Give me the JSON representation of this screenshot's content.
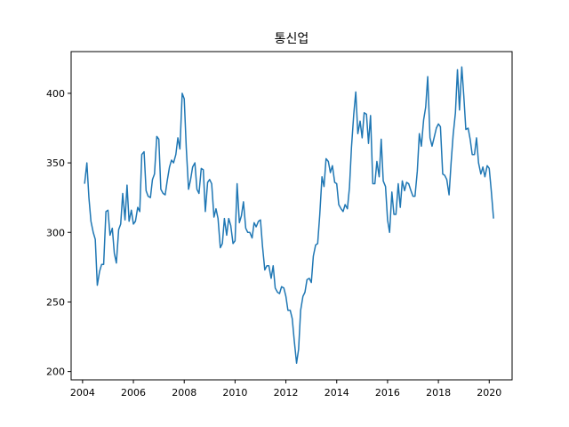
{
  "chart_data": {
    "type": "line",
    "title": "통신업",
    "xlabel": "",
    "ylabel": "",
    "xlim": [
      2003.55,
      2020.9
    ],
    "ylim": [
      194,
      430
    ],
    "x_ticks": [
      2004,
      2006,
      2008,
      2010,
      2012,
      2014,
      2016,
      2018,
      2020
    ],
    "x_tick_labels": [
      "2004",
      "2006",
      "2008",
      "2010",
      "2012",
      "2014",
      "2016",
      "2018",
      "2020"
    ],
    "y_ticks": [
      200,
      250,
      300,
      350,
      400
    ],
    "y_tick_labels": [
      "200",
      "250",
      "300",
      "350",
      "400"
    ],
    "grid": false,
    "series": [
      {
        "color": "#1f77b4",
        "x": [
          2004.08,
          2004.17,
          2004.25,
          2004.33,
          2004.42,
          2004.5,
          2004.58,
          2004.67,
          2004.75,
          2004.83,
          2004.92,
          2005.0,
          2005.08,
          2005.17,
          2005.25,
          2005.33,
          2005.42,
          2005.5,
          2005.58,
          2005.67,
          2005.75,
          2005.83,
          2005.92,
          2006.0,
          2006.08,
          2006.17,
          2006.25,
          2006.33,
          2006.42,
          2006.5,
          2006.58,
          2006.67,
          2006.75,
          2006.83,
          2006.92,
          2007.0,
          2007.08,
          2007.17,
          2007.25,
          2007.33,
          2007.42,
          2007.5,
          2007.58,
          2007.67,
          2007.75,
          2007.83,
          2007.92,
          2008.0,
          2008.08,
          2008.17,
          2008.25,
          2008.33,
          2008.42,
          2008.5,
          2008.58,
          2008.67,
          2008.75,
          2008.83,
          2008.92,
          2009.0,
          2009.08,
          2009.17,
          2009.25,
          2009.33,
          2009.42,
          2009.5,
          2009.58,
          2009.67,
          2009.75,
          2009.83,
          2009.92,
          2010.0,
          2010.08,
          2010.17,
          2010.25,
          2010.33,
          2010.42,
          2010.5,
          2010.58,
          2010.67,
          2010.75,
          2010.83,
          2010.92,
          2011.0,
          2011.08,
          2011.17,
          2011.25,
          2011.33,
          2011.42,
          2011.5,
          2011.58,
          2011.67,
          2011.75,
          2011.83,
          2011.92,
          2012.0,
          2012.08,
          2012.17,
          2012.25,
          2012.33,
          2012.42,
          2012.5,
          2012.58,
          2012.67,
          2012.75,
          2012.83,
          2012.92,
          2013.0,
          2013.08,
          2013.17,
          2013.25,
          2013.33,
          2013.42,
          2013.5,
          2013.58,
          2013.67,
          2013.75,
          2013.83,
          2013.92,
          2014.0,
          2014.08,
          2014.17,
          2014.25,
          2014.33,
          2014.42,
          2014.5,
          2014.58,
          2014.67,
          2014.75,
          2014.83,
          2014.92,
          2015.0,
          2015.08,
          2015.17,
          2015.25,
          2015.33,
          2015.42,
          2015.5,
          2015.58,
          2015.67,
          2015.75,
          2015.83,
          2015.92,
          2016.0,
          2016.08,
          2016.17,
          2016.25,
          2016.33,
          2016.42,
          2016.5,
          2016.58,
          2016.67,
          2016.75,
          2016.83,
          2016.92,
          2017.0,
          2017.08,
          2017.17,
          2017.25,
          2017.33,
          2017.42,
          2017.5,
          2017.58,
          2017.67,
          2017.75,
          2017.83,
          2017.92,
          2018.0,
          2018.08,
          2018.17,
          2018.25,
          2018.33,
          2018.42,
          2018.5,
          2018.58,
          2018.67,
          2018.75,
          2018.83,
          2018.92,
          2019.0,
          2019.08,
          2019.17,
          2019.25,
          2019.33,
          2019.42,
          2019.5,
          2019.58,
          2019.67,
          2019.75,
          2019.83,
          2019.92,
          2020.0,
          2020.08,
          2020.17
        ],
        "y": [
          335,
          350,
          325,
          308,
          300,
          295,
          262,
          272,
          277,
          277,
          315,
          316,
          298,
          303,
          285,
          278,
          302,
          306,
          328,
          309,
          334,
          308,
          316,
          306,
          308,
          318,
          315,
          356,
          358,
          330,
          326,
          325,
          338,
          342,
          369,
          367,
          331,
          328,
          327,
          337,
          347,
          352,
          350,
          356,
          368,
          360,
          400,
          396,
          361,
          331,
          338,
          347,
          350,
          331,
          328,
          346,
          345,
          315,
          336,
          338,
          335,
          311,
          317,
          310,
          289,
          292,
          310,
          298,
          310,
          305,
          292,
          294,
          335,
          307,
          312,
          322,
          303,
          300,
          300,
          296,
          307,
          304,
          308,
          309,
          290,
          273,
          276,
          276,
          267,
          276,
          260,
          257,
          256,
          261,
          260,
          254,
          244,
          244,
          238,
          222,
          206,
          216,
          244,
          254,
          257,
          266,
          267,
          264,
          283,
          291,
          292,
          312,
          340,
          333,
          353,
          351,
          343,
          348,
          336,
          335,
          320,
          317,
          315,
          320,
          317,
          332,
          361,
          385,
          401,
          371,
          380,
          368,
          386,
          385,
          364,
          384,
          335,
          335,
          351,
          340,
          367,
          337,
          333,
          309,
          300,
          329,
          313,
          313,
          335,
          318,
          337,
          330,
          336,
          335,
          330,
          326,
          326,
          344,
          371,
          362,
          381,
          390,
          412,
          368,
          362,
          368,
          375,
          378,
          376,
          342,
          341,
          338,
          327,
          350,
          370,
          386,
          417,
          388,
          419,
          398,
          374,
          375,
          367,
          356,
          356,
          368,
          350,
          342,
          347,
          340,
          348,
          346,
          330,
          310
        ]
      }
    ]
  }
}
